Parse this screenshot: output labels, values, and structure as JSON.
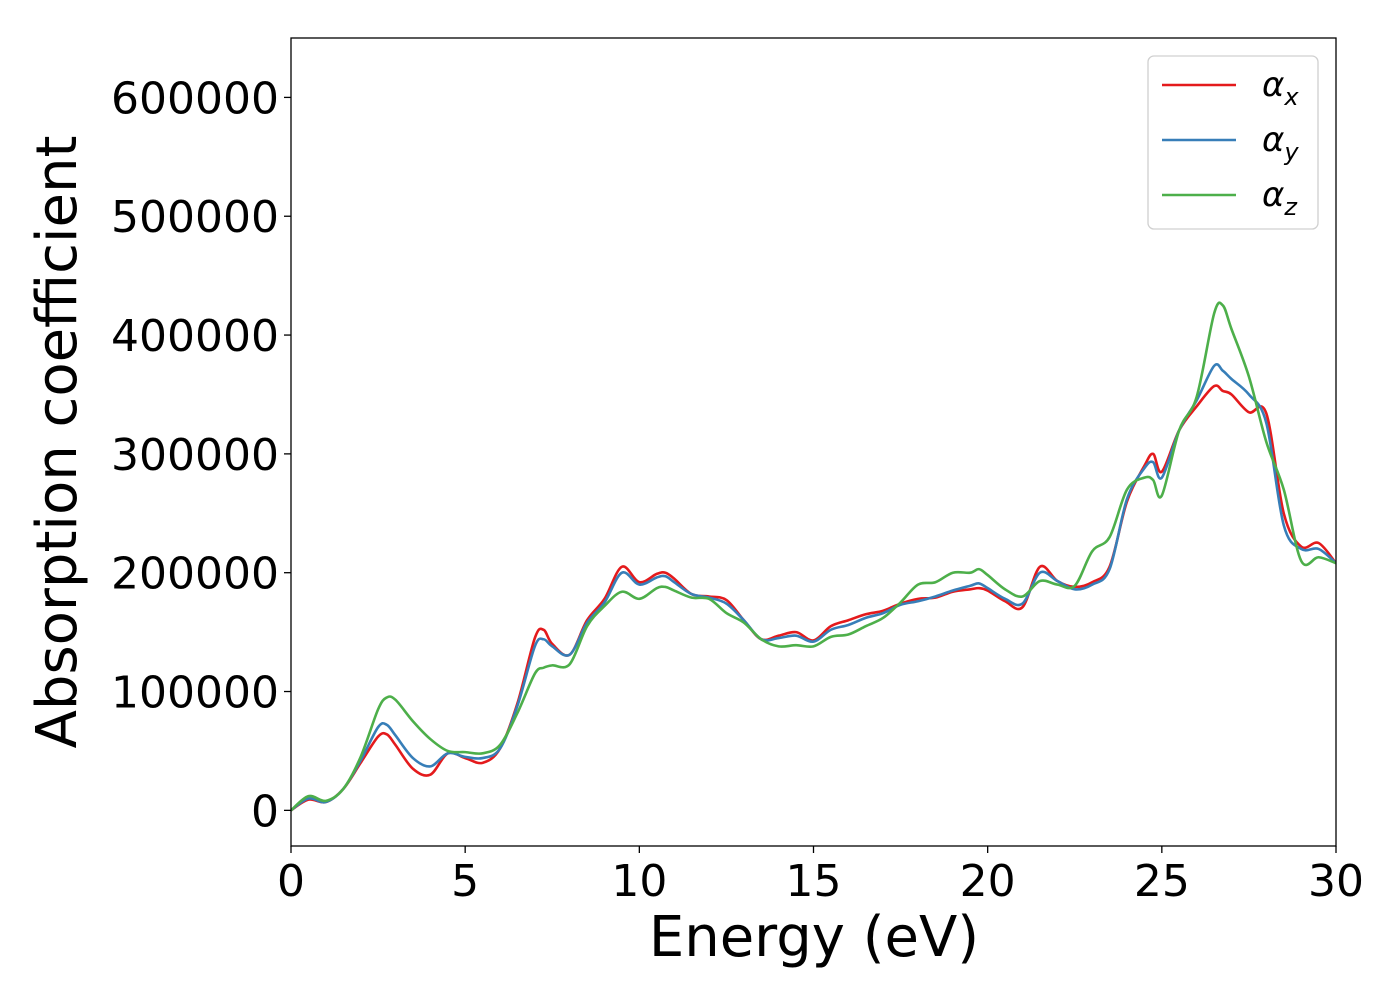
{
  "chart_data": {
    "type": "line",
    "title": "",
    "xlabel": "Energy (eV)",
    "ylabel": "Absorption coefficient",
    "xlim": [
      0,
      30
    ],
    "ylim": [
      -30000,
      650000
    ],
    "xticks": [
      0,
      5,
      10,
      15,
      20,
      25,
      30
    ],
    "xtick_labels": [
      "0",
      "5",
      "10",
      "15",
      "20",
      "25",
      "30"
    ],
    "yticks": [
      0,
      100000,
      200000,
      300000,
      400000,
      500000,
      600000
    ],
    "ytick_labels": [
      "0",
      "100000",
      "200000",
      "300000",
      "400000",
      "500000",
      "600000"
    ],
    "grid": false,
    "legend_position": "top-right",
    "x": [
      0,
      0.5,
      1,
      1.5,
      2,
      2.5,
      2.75,
      3,
      3.5,
      4,
      4.5,
      5,
      5.5,
      6,
      6.5,
      7,
      7.25,
      7.5,
      8,
      8.5,
      9,
      9.5,
      10,
      10.5,
      10.75,
      11,
      11.5,
      12,
      12.5,
      13,
      13.5,
      14,
      14.5,
      15,
      15.5,
      16,
      16.5,
      17,
      17.5,
      18,
      18.5,
      19,
      19.5,
      19.75,
      20,
      20.5,
      21,
      21.5,
      22,
      22.5,
      23,
      23.5,
      24,
      24.5,
      24.75,
      25,
      25.5,
      26,
      26.5,
      26.75,
      27,
      27.5,
      28,
      28.5,
      29,
      29.5,
      30
    ],
    "series": [
      {
        "name": "α",
        "subscript": "x",
        "color": "#e41a1c",
        "values": [
          0,
          9000,
          7000,
          18000,
          40000,
          62000,
          64000,
          55000,
          35000,
          30000,
          48000,
          44000,
          40000,
          52000,
          90000,
          145000,
          152000,
          140000,
          131000,
          160000,
          178000,
          205000,
          192000,
          199000,
          200000,
          195000,
          182000,
          180000,
          177000,
          160000,
          144000,
          147000,
          150000,
          143000,
          155000,
          160000,
          165000,
          168000,
          174000,
          178000,
          179000,
          184000,
          186000,
          187000,
          185000,
          176000,
          171000,
          205000,
          193000,
          188000,
          192000,
          205000,
          260000,
          290000,
          300000,
          285000,
          320000,
          340000,
          357000,
          353000,
          350000,
          335000,
          334000,
          250000,
          222000,
          225000,
          208000
        ]
      },
      {
        "name": "α",
        "subscript": "y",
        "color": "#377eb8",
        "values": [
          0,
          10000,
          7000,
          18000,
          42000,
          70000,
          72000,
          63000,
          44000,
          37000,
          48000,
          45000,
          44000,
          52000,
          88000,
          138000,
          144000,
          138000,
          131000,
          158000,
          175000,
          200000,
          190000,
          196000,
          197000,
          192000,
          182000,
          179000,
          174000,
          160000,
          144000,
          145000,
          147000,
          142000,
          152000,
          156000,
          162000,
          166000,
          173000,
          176000,
          180000,
          185000,
          189000,
          191000,
          187000,
          178000,
          174000,
          200000,
          193000,
          186000,
          190000,
          203000,
          262000,
          288000,
          293000,
          280000,
          320000,
          345000,
          374000,
          370000,
          363000,
          350000,
          326000,
          240000,
          220000,
          220000,
          208000
        ]
      },
      {
        "name": "α",
        "subscript": "z",
        "color": "#4daf4a",
        "values": [
          0,
          12000,
          8000,
          18000,
          45000,
          85000,
          95000,
          93000,
          75000,
          60000,
          50000,
          49000,
          48000,
          55000,
          82000,
          115000,
          120000,
          122000,
          123000,
          155000,
          172000,
          184000,
          178000,
          187000,
          188000,
          185000,
          179000,
          178000,
          166000,
          158000,
          144000,
          138000,
          139000,
          138000,
          146000,
          148000,
          155000,
          162000,
          175000,
          190000,
          192000,
          200000,
          200000,
          203000,
          198000,
          186000,
          180000,
          193000,
          190000,
          189000,
          218000,
          230000,
          270000,
          280000,
          278000,
          265000,
          320000,
          348000,
          418000,
          425000,
          405000,
          365000,
          310000,
          270000,
          210000,
          213000,
          208000
        ]
      }
    ]
  }
}
